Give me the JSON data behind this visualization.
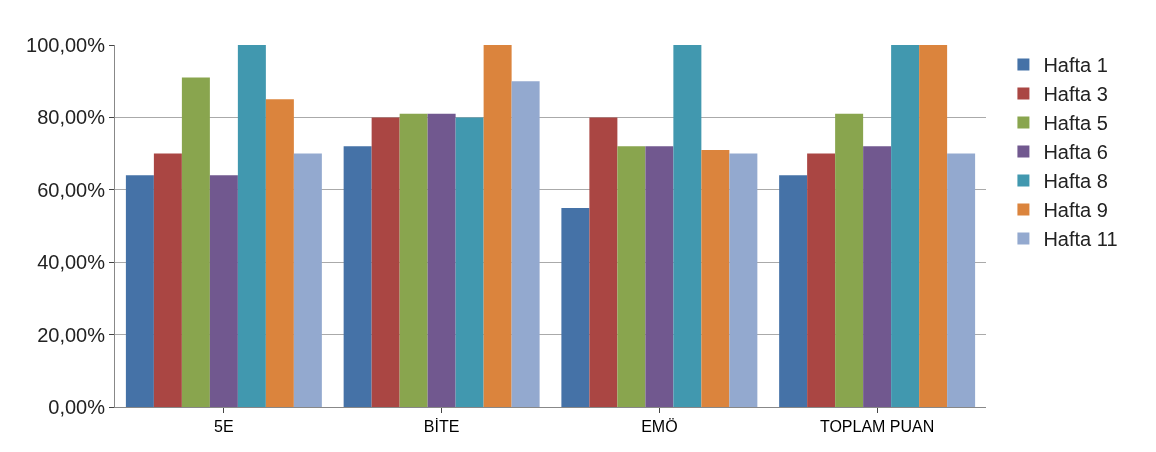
{
  "chart_data": {
    "type": "bar",
    "categories": [
      "5E",
      "BİTE",
      "EMÖ",
      "TOPLAM PUAN"
    ],
    "series": [
      {
        "name": "Hafta 1",
        "color": "#4572a7",
        "values": [
          64,
          72,
          55,
          64
        ]
      },
      {
        "name": "Hafta 3",
        "color": "#aa4643",
        "values": [
          70,
          80,
          80,
          70
        ]
      },
      {
        "name": "Hafta 5",
        "color": "#89a54e",
        "values": [
          91,
          81,
          72,
          81
        ]
      },
      {
        "name": "Hafta 6",
        "color": "#71588f",
        "values": [
          64,
          81,
          72,
          72
        ]
      },
      {
        "name": "Hafta 8",
        "color": "#4198af",
        "values": [
          100,
          80,
          100,
          100
        ]
      },
      {
        "name": "Hafta 9",
        "color": "#db843d",
        "values": [
          85,
          100,
          71,
          100
        ]
      },
      {
        "name": "Hafta 11",
        "color": "#93a9cf",
        "values": [
          70,
          90,
          70,
          70
        ]
      }
    ],
    "ylim": [
      0,
      100
    ],
    "yticks": [
      {
        "value": 0,
        "label": "0,00%"
      },
      {
        "value": 20,
        "label": "20,00%"
      },
      {
        "value": 40,
        "label": "40,00%"
      },
      {
        "value": 60,
        "label": "60,00%"
      },
      {
        "value": 80,
        "label": "80,00%"
      },
      {
        "value": 100,
        "label": "100,00%"
      }
    ],
    "grid": "y",
    "legend": "right"
  }
}
